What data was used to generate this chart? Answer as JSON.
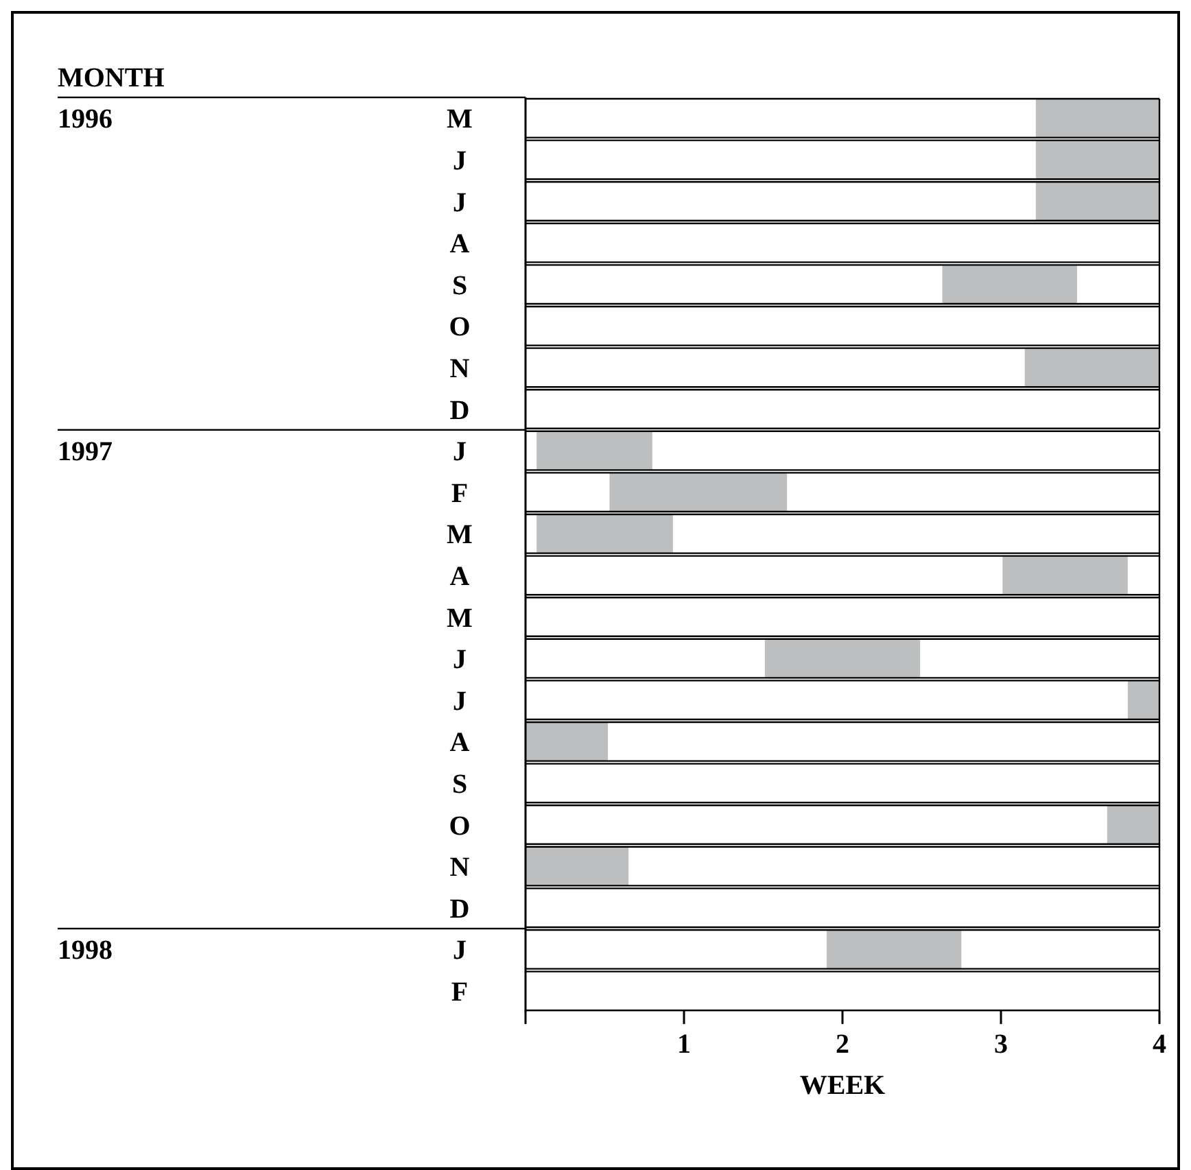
{
  "chart_data": [
    {
      "type": "bar",
      "orientation": "horizontal",
      "annotations": [
        "MONTH"
      ],
      "ylabel": "1996",
      "categories": [
        "M",
        "J",
        "J",
        "A",
        "S",
        "O",
        "N",
        "D"
      ],
      "base": [
        3.22,
        3.22,
        3.22,
        null,
        2.63,
        null,
        3.15,
        null
      ],
      "values": [
        0.78,
        0.78,
        0.78,
        null,
        0.85,
        null,
        0.85,
        null
      ],
      "color": "#bcbec0",
      "xlim": [
        0,
        4
      ],
      "grid": "y",
      "tick_labels": "y"
    },
    {
      "type": "bar",
      "orientation": "horizontal",
      "ylabel": "1997",
      "categories": [
        "J",
        "F",
        "M",
        "A",
        "M",
        "J",
        "J",
        "A",
        "S",
        "O",
        "N",
        "D"
      ],
      "base": [
        0.07,
        0.53,
        0.07,
        3.01,
        null,
        1.51,
        3.8,
        0,
        null,
        3.67,
        0,
        null
      ],
      "values": [
        0.73,
        1.12,
        0.86,
        0.79,
        null,
        0.98,
        0.2,
        0.52,
        null,
        0.33,
        0.65,
        null
      ],
      "color": "#bcbec0",
      "xlim": [
        0,
        4
      ],
      "grid": "y",
      "tick_labels": "y"
    },
    {
      "type": "bar",
      "orientation": "horizontal",
      "ylabel": "1998",
      "xlabel": "WEEK",
      "categories": [
        "J",
        "F"
      ],
      "base": [
        1.9,
        null
      ],
      "values": [
        0.85,
        null
      ],
      "color": "#bcbec0",
      "xlim": [
        0,
        4
      ],
      "xticks": [
        {
          "value": 0,
          "label": null
        },
        1,
        2,
        3,
        4
      ],
      "grid": "y"
    }
  ]
}
